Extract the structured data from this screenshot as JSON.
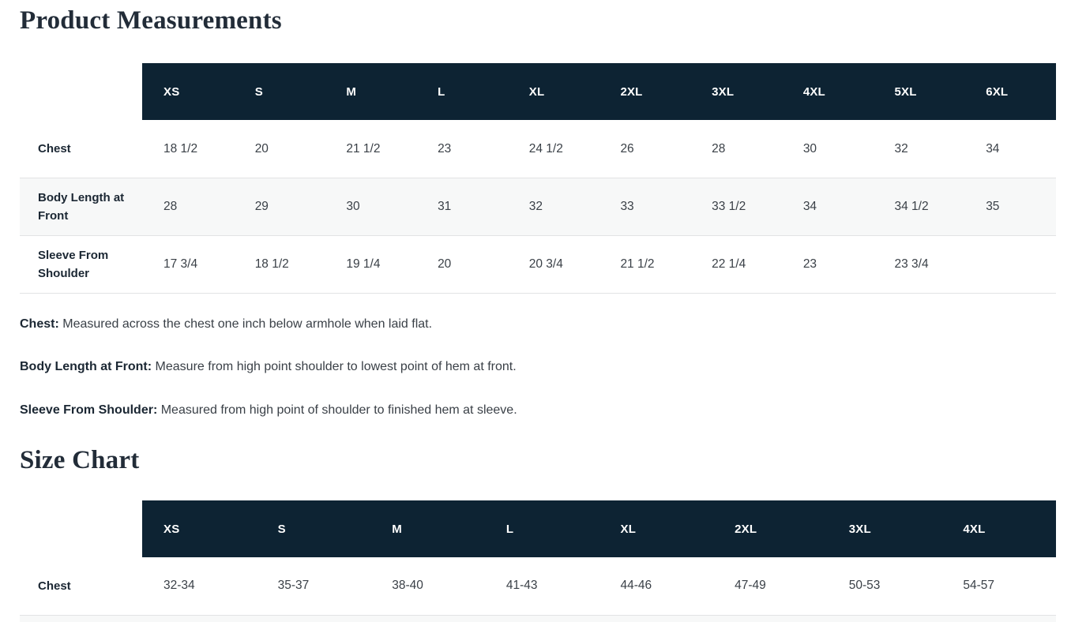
{
  "colors": {
    "header_bg": "#0d2333",
    "header_text": "#ffffff",
    "title_color": "#222c38",
    "row_stripe": "#f7f8f8",
    "row_border": "#e2e3e4",
    "label_text": "#1b2733",
    "cell_text": "#3a4047"
  },
  "product_measurements": {
    "title": "Product Measurements",
    "columns": [
      "XS",
      "S",
      "M",
      "L",
      "XL",
      "2XL",
      "3XL",
      "4XL",
      "5XL",
      "6XL"
    ],
    "rows": [
      {
        "label": "Chest",
        "values": [
          "18 1/2",
          "20",
          "21 1/2",
          "23",
          "24 1/2",
          "26",
          "28",
          "30",
          "32",
          "34"
        ]
      },
      {
        "label": "Body Length at Front",
        "values": [
          "28",
          "29",
          "30",
          "31",
          "32",
          "33",
          "33 1/2",
          "34",
          "34 1/2",
          "35"
        ]
      },
      {
        "label": "Sleeve From Shoulder",
        "values": [
          "17 3/4",
          "18 1/2",
          "19 1/4",
          "20",
          "20 3/4",
          "21 1/2",
          "22 1/4",
          "23",
          "23 3/4",
          ""
        ]
      }
    ],
    "notes": [
      {
        "term": "Chest:",
        "description": "Measured across the chest one inch below armhole when laid flat."
      },
      {
        "term": "Body Length at Front:",
        "description": "Measure from high point shoulder to lowest point of hem at front."
      },
      {
        "term": "Sleeve From Shoulder:",
        "description": "Measured from high point of shoulder to finished hem at sleeve."
      }
    ]
  },
  "size_chart": {
    "title": "Size Chart",
    "columns": [
      "XS",
      "S",
      "M",
      "L",
      "XL",
      "2XL",
      "3XL",
      "4XL"
    ],
    "rows": [
      {
        "label": "Chest",
        "values": [
          "32-34",
          "35-37",
          "38-40",
          "41-43",
          "44-46",
          "47-49",
          "50-53",
          "54-57"
        ]
      }
    ]
  }
}
